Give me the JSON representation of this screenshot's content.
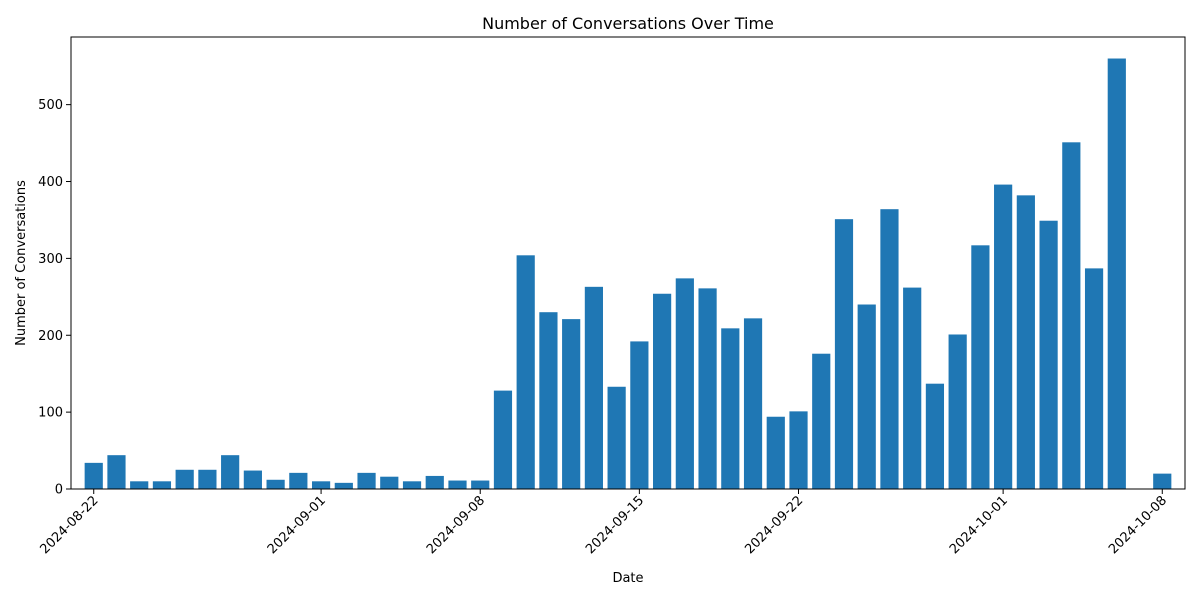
{
  "chart_data": {
    "type": "bar",
    "title": "Number of Conversations Over Time",
    "xlabel": "Date",
    "ylabel": "Number of Conversations",
    "x_range": [
      "2024-08-21",
      "2024-10-09"
    ],
    "ylim": [
      0,
      588
    ],
    "x_ticks": [
      "2024-08-22",
      "2024-09-01",
      "2024-09-08",
      "2024-09-15",
      "2024-09-22",
      "2024-10-01",
      "2024-10-08"
    ],
    "y_ticks": [
      0,
      100,
      200,
      300,
      400,
      500
    ],
    "bar_color": "#1f77b4",
    "grid": false,
    "series": [
      {
        "x": [
          "2024-08-22",
          "2024-08-23",
          "2024-08-24",
          "2024-08-25",
          "2024-08-26",
          "2024-08-27",
          "2024-08-28",
          "2024-08-29",
          "2024-08-30",
          "2024-08-31",
          "2024-09-01",
          "2024-09-02",
          "2024-09-03",
          "2024-09-04",
          "2024-09-05",
          "2024-09-06",
          "2024-09-07",
          "2024-09-08",
          "2024-09-09",
          "2024-09-10",
          "2024-09-11",
          "2024-09-12",
          "2024-09-13",
          "2024-09-14",
          "2024-09-15",
          "2024-09-16",
          "2024-09-17",
          "2024-09-18",
          "2024-09-19",
          "2024-09-20",
          "2024-09-21",
          "2024-09-22",
          "2024-09-23",
          "2024-09-24",
          "2024-09-25",
          "2024-09-26",
          "2024-09-27",
          "2024-09-28",
          "2024-09-29",
          "2024-09-30",
          "2024-10-01",
          "2024-10-02",
          "2024-10-03",
          "2024-10-04",
          "2024-10-05",
          "2024-10-06",
          "2024-10-08"
        ],
        "values": [
          34,
          44,
          10,
          10,
          25,
          25,
          44,
          24,
          12,
          21,
          10,
          8,
          21,
          16,
          10,
          17,
          11,
          11,
          128,
          304,
          230,
          221,
          263,
          133,
          192,
          254,
          274,
          261,
          209,
          222,
          94,
          101,
          176,
          351,
          240,
          364,
          262,
          137,
          201,
          317,
          396,
          382,
          349,
          451,
          287,
          560,
          20
        ]
      }
    ]
  }
}
